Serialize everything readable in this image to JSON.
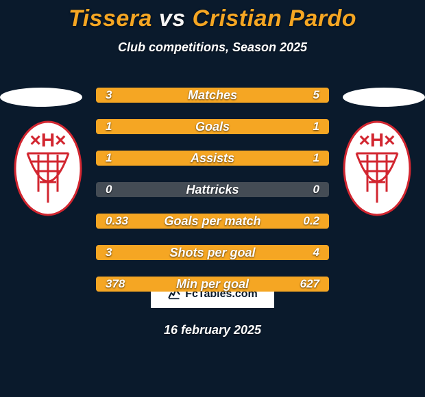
{
  "colors": {
    "background": "#0a1a2c",
    "accent": "#f5a623",
    "title_p1": "#f5a623",
    "title_vs": "#f5f5f5",
    "title_p2": "#f5a623",
    "subtitle": "#ffffff",
    "row_track": "#444c55",
    "row_fill": "#f5a623",
    "row_text": "#ffffff",
    "ellipse": "#ffffff",
    "badge_border": "#0a1a2c",
    "site_border": "#ffffff",
    "site_text": "#0a1a2c",
    "site_bg": "#ffffff",
    "date": "#ffffff",
    "club_red": "#d22630",
    "club_white": "#ffffff"
  },
  "title": {
    "player1": "Tissera",
    "vs": "vs",
    "player2": "Cristian Pardo"
  },
  "subtitle": "Club competitions, Season 2025",
  "rows": [
    {
      "label": "Matches",
      "left": "3",
      "right": "5",
      "left_pct": 37,
      "right_pct": 63
    },
    {
      "label": "Goals",
      "left": "1",
      "right": "1",
      "left_pct": 50,
      "right_pct": 50
    },
    {
      "label": "Assists",
      "left": "1",
      "right": "1",
      "left_pct": 50,
      "right_pct": 50
    },
    {
      "label": "Hattricks",
      "left": "0",
      "right": "0",
      "left_pct": 0,
      "right_pct": 0
    },
    {
      "label": "Goals per match",
      "left": "0.33",
      "right": "0.2",
      "left_pct": 62,
      "right_pct": 38
    },
    {
      "label": "Shots per goal",
      "left": "3",
      "right": "4",
      "left_pct": 43,
      "right_pct": 57
    },
    {
      "label": "Min per goal",
      "left": "378",
      "right": "627",
      "left_pct": 38,
      "right_pct": 62
    }
  ],
  "site_label": "FcTables.com",
  "date": "16 february 2025"
}
